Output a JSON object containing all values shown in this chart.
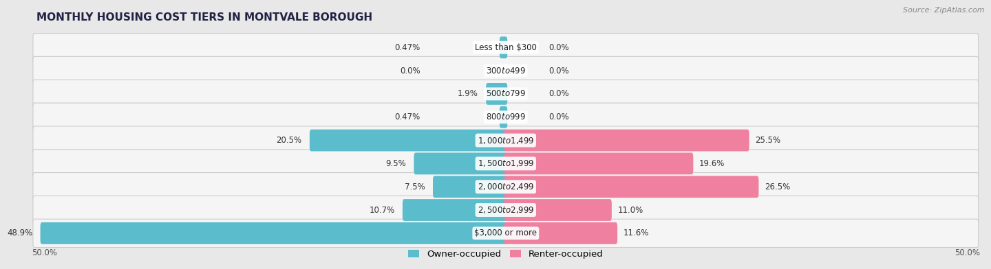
{
  "title": "MONTHLY HOUSING COST TIERS IN MONTVALE BOROUGH",
  "source": "Source: ZipAtlas.com",
  "categories": [
    "Less than $300",
    "$300 to $499",
    "$500 to $799",
    "$800 to $999",
    "$1,000 to $1,499",
    "$1,500 to $1,999",
    "$2,000 to $2,499",
    "$2,500 to $2,999",
    "$3,000 or more"
  ],
  "owner_values": [
    0.47,
    0.0,
    1.9,
    0.47,
    20.5,
    9.5,
    7.5,
    10.7,
    48.9
  ],
  "renter_values": [
    0.0,
    0.0,
    0.0,
    0.0,
    25.5,
    19.6,
    26.5,
    11.0,
    11.6
  ],
  "owner_color": "#5bbccc",
  "renter_color": "#f080a0",
  "axis_max": 50.0,
  "fig_bg_color": "#e8e8e8",
  "row_fill_color": "#f5f5f5",
  "row_edge_color": "#cccccc",
  "label_fontsize": 8.5,
  "title_fontsize": 11,
  "legend_fontsize": 9.5,
  "source_fontsize": 8
}
